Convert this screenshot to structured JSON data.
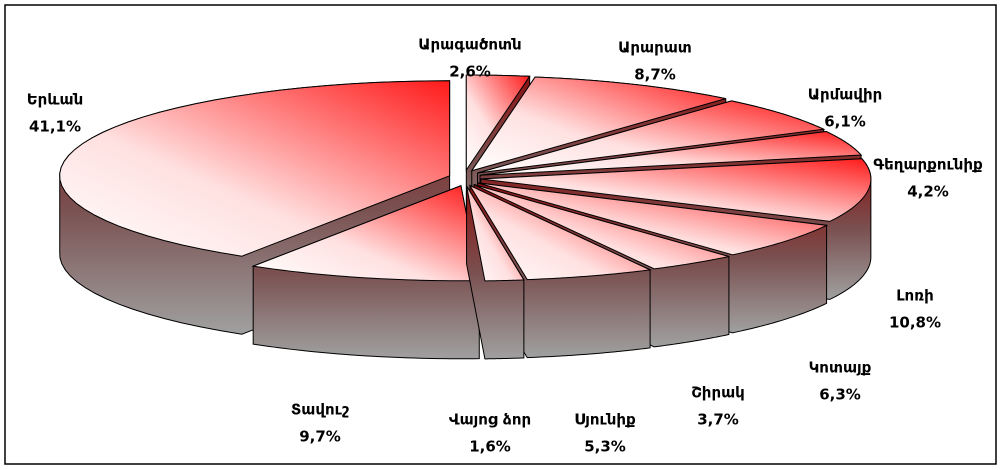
{
  "chart_data": {
    "type": "pie3d",
    "categories": [
      "Արագածոտն",
      "Արարատ",
      "Արմավիր",
      "Գեղարքունիք",
      "Լոռի",
      "Կոտայք",
      "Շիրակ",
      "Սյունիք",
      "Վայոց ձոր",
      "Տավուշ",
      "Երևան"
    ],
    "values": [
      2.6,
      8.7,
      6.1,
      4.2,
      10.8,
      6.3,
      3.7,
      5.3,
      1.6,
      9.7,
      41.1
    ],
    "value_labels": [
      "2,6%",
      "8,7%",
      "6,1%",
      "4,2%",
      "10,8%",
      "6,3%",
      "3,7%",
      "5,3%",
      "1,6%",
      "9,7%",
      "41,1%"
    ],
    "color": "#ff1a1a"
  }
}
